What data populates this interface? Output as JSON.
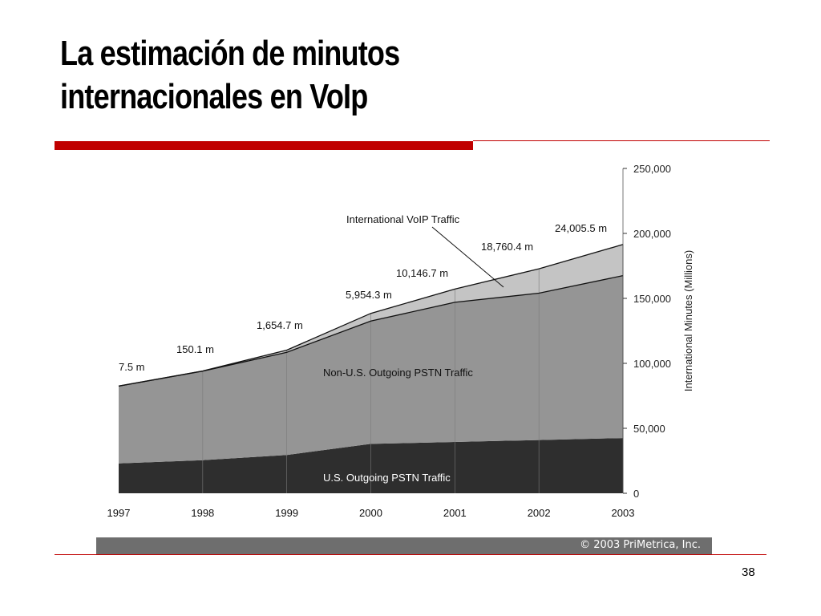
{
  "slide": {
    "title_line1": "La estimación de minutos",
    "title_line2": "internacionales en VoIp",
    "page_number": "38",
    "accent_color": "#c00000",
    "rule_color": "#c00000"
  },
  "chart_data": {
    "type": "area",
    "stacked": true,
    "title": "",
    "xlabel": "",
    "ylabel": "International Minutes (Millions)",
    "x": [
      "1997",
      "1998",
      "1999",
      "2000",
      "2001",
      "2002",
      "2003"
    ],
    "ylim": [
      0,
      250000
    ],
    "yticks": [
      0,
      50000,
      100000,
      150000,
      200000,
      250000
    ],
    "ytick_labels": [
      "0",
      "50,000",
      "100,000",
      "150,000",
      "200,000",
      "250,000"
    ],
    "y_axis_position": "right",
    "grid": "vertical lines at each year",
    "series": [
      {
        "label": "U.S. Outgoing PSTN Traffic",
        "values": [
          23000,
          25500,
          29500,
          38000,
          39500,
          41000,
          42500
        ],
        "color": "#2e2e2e"
      },
      {
        "label": "Non-U.S. Outgoing PSTN Traffic",
        "values": [
          59500,
          68500,
          79000,
          94500,
          107500,
          113000,
          125000
        ],
        "color": "#959595"
      },
      {
        "label": "International VoIP Traffic",
        "values": [
          7.5,
          150.1,
          1654.7,
          5954.3,
          10146.7,
          18760.4,
          24005.5
        ],
        "color": "#c4c4c4"
      }
    ],
    "voip_labels": [
      "7.5 m",
      "150.1 m",
      "1,654.7 m",
      "5,954.3 m",
      "10,146.7 m",
      "18,760.4 m",
      "24,005.5 m"
    ],
    "credit": "© 2003 PriMetrica, Inc."
  }
}
